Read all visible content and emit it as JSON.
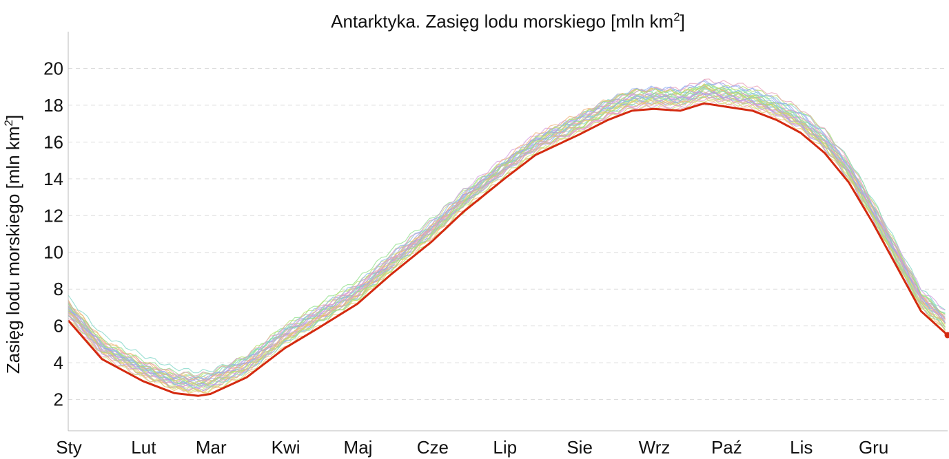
{
  "chart_data": {
    "type": "line",
    "title": "Antarktyka. Zasięg lodu morskiego [mln km",
    "title_sup": "2",
    "title_end": "]",
    "ylabel": "Zasięg lodu morskiego [mln km",
    "ylabel_sup": "2",
    "ylabel_end": "]",
    "xlabel": "",
    "y_ticks": [
      2,
      4,
      6,
      8,
      10,
      12,
      14,
      16,
      18,
      20
    ],
    "ylim": [
      0.3,
      22
    ],
    "xlim": [
      1,
      366
    ],
    "x_ticks": [
      {
        "label": "Sty",
        "day": 1
      },
      {
        "label": "Lut",
        "day": 32
      },
      {
        "label": "Mar",
        "day": 60
      },
      {
        "label": "Kwi",
        "day": 91
      },
      {
        "label": "Maj",
        "day": 121
      },
      {
        "label": "Cze",
        "day": 152
      },
      {
        "label": "Lip",
        "day": 182
      },
      {
        "label": "Sie",
        "day": 213
      },
      {
        "label": "Wrz",
        "day": 244
      },
      {
        "label": "Paź",
        "day": 274
      },
      {
        "label": "Lis",
        "day": 305
      },
      {
        "label": "Gru",
        "day": 335
      }
    ],
    "grid": {
      "horizontal": true,
      "style": "dashed",
      "color": "#dddddd"
    },
    "historical_colors": [
      "#f0b07a",
      "#e6c36e",
      "#c9e07a",
      "#8fe08a",
      "#7fd6c7",
      "#8fb6f0",
      "#a79be8",
      "#d59be0",
      "#e8a0b8",
      "#b8e06a"
    ],
    "series": [
      {
        "color": "#d42a10",
        "x": [
          1,
          15,
          32,
          45,
          55,
          60,
          75,
          91,
          105,
          121,
          135,
          152,
          165,
          182,
          195,
          213,
          225,
          235,
          244,
          255,
          265,
          275,
          285,
          295,
          305,
          315,
          325,
          335,
          345,
          355,
          366
        ],
        "y": [
          6.3,
          4.2,
          3.0,
          2.35,
          2.2,
          2.3,
          3.2,
          4.8,
          5.9,
          7.2,
          8.8,
          10.6,
          12.2,
          14.0,
          15.3,
          16.4,
          17.2,
          17.7,
          17.8,
          17.7,
          18.1,
          17.9,
          17.7,
          17.2,
          16.5,
          15.4,
          13.8,
          11.6,
          9.2,
          6.8,
          5.5
        ]
      }
    ]
  }
}
